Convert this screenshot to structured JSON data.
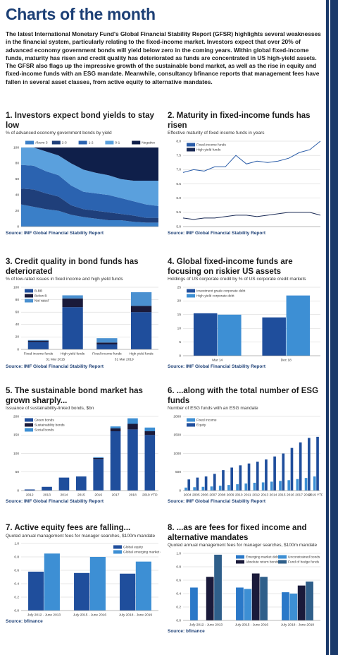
{
  "title": "Charts of the month",
  "intro": "The latest International Monetary Fund's Global Financial Stability Report (GFSR) highlights several weaknesses in the financial system, particularly relating to the fixed-income market. Investors expect that over 20% of advanced economy government bonds will yield below zero in the coming years. Within global fixed-income funds, maturity has risen and credit quality has deteriorated as funds are concentrated in US high-yield assets. The GFSR also flags up the impressive growth of the sustainable bond market, as well as the rise in equity and fixed-income funds with an ESG mandate. Meanwhile, consultancy bfinance reports that management fees have fallen in several asset classes, from active equity to alternative mandates.",
  "chart_data": [
    {
      "type": "area",
      "stacked": true,
      "title": "1. Investors expect bond yields to stay low",
      "subtitle": "% of advanced economy government bonds by yield",
      "source": "Source: IMF Global Financial Stability Report",
      "categories": [
        null,
        null,
        null,
        null,
        null,
        null,
        null,
        null,
        null,
        null,
        null,
        null
      ],
      "series": [
        {
          "name": "Above 3",
          "color": "#3a7fc8",
          "values": [
            28,
            25,
            22,
            20,
            15,
            12,
            10,
            8,
            8,
            6,
            5,
            5
          ]
        },
        {
          "name": "2-3",
          "color": "#1f3f7a",
          "values": [
            20,
            22,
            20,
            18,
            12,
            10,
            10,
            10,
            8,
            8,
            6,
            6
          ]
        },
        {
          "name": "1-2",
          "color": "#2b63b0",
          "values": [
            30,
            30,
            28,
            27,
            25,
            22,
            22,
            22,
            20,
            18,
            17,
            15
          ]
        },
        {
          "name": "0-1",
          "color": "#5aa0dd",
          "values": [
            22,
            23,
            25,
            25,
            28,
            28,
            26,
            25,
            24,
            26,
            30,
            32
          ]
        },
        {
          "name": "Negative",
          "color": "#0f1f4a",
          "values": [
            0,
            0,
            5,
            10,
            20,
            28,
            32,
            35,
            40,
            42,
            42,
            42
          ]
        }
      ],
      "ylim": [
        0,
        100
      ],
      "yticks": [
        0,
        20,
        40,
        60,
        80,
        100
      ],
      "grid": true,
      "legend": "top"
    },
    {
      "type": "line",
      "title": "2. Maturity in fixed-income funds has risen",
      "subtitle": "Effective maturity of fixed income funds in years",
      "source": "Source: IMF Global Financial Stability Report",
      "categories": [
        null,
        null,
        null,
        null,
        null,
        null,
        null,
        null,
        null,
        null,
        null,
        null,
        null,
        null
      ],
      "series": [
        {
          "name": "Fixed-income funds",
          "color": "#2a5ca8",
          "values": [
            6.9,
            7.0,
            6.95,
            7.1,
            7.1,
            7.5,
            7.2,
            7.3,
            7.25,
            7.3,
            7.4,
            7.6,
            7.7,
            8.0
          ]
        },
        {
          "name": "High-yield funds",
          "color": "#1a2a55",
          "values": [
            5.3,
            5.25,
            5.3,
            5.3,
            5.35,
            5.4,
            5.4,
            5.35,
            5.4,
            5.45,
            5.5,
            5.5,
            5.5,
            5.4
          ]
        }
      ],
      "ylim": [
        5.0,
        8.0
      ],
      "yticks": [
        {
          "value": 5,
          "label": "5.0"
        },
        5.5,
        {
          "value": 6,
          "label": "6.0"
        },
        6.5,
        {
          "value": 7,
          "label": "7.0"
        },
        7.5,
        {
          "value": 8,
          "label": "8.0"
        }
      ],
      "grid": true,
      "legend": "upper left"
    },
    {
      "type": "bar",
      "stacked": true,
      "title": "3. Credit quality in bond funds has deteriorated",
      "subtitle": "% of low-rated issues in fixed income and high yield funds",
      "source": "Source: IMF Global Financial Stability Report",
      "categories": [
        "Fixed income funds",
        "High yield funds",
        "Fixed income funds",
        "High yield funds"
      ],
      "group_labels": [
        "31 Mar 2015",
        "31 Mar 2019"
      ],
      "series": [
        {
          "name": "B-BB",
          "color": "#1f4e9c",
          "values": [
            12,
            68,
            8,
            60
          ]
        },
        {
          "name": "Below B",
          "color": "#1a1a3a",
          "values": [
            2,
            14,
            3,
            10
          ]
        },
        {
          "name": "Not rated",
          "color": "#4a90d0",
          "values": [
            1,
            5,
            7,
            22
          ]
        }
      ],
      "ylim": [
        0,
        100
      ],
      "yticks": [
        0,
        20,
        40,
        60,
        80,
        100
      ],
      "grid": true,
      "legend": "upper left"
    },
    {
      "type": "bar",
      "stacked": false,
      "title": "4. Global fixed-income funds are focusing on riskier US assets",
      "subtitle": "Holdings of US corporate credit by % of US corporate credit markets",
      "source": "Source: IMF Global Financial Stability Report",
      "categories": [
        "Mar 14",
        "Dec 18"
      ],
      "series": [
        {
          "name": "Investment grade corporate debt",
          "color": "#1f4e9c",
          "values": [
            15.5,
            14
          ]
        },
        {
          "name": "High-yield corporate debt",
          "color": "#3d8fd4",
          "values": [
            15,
            22
          ]
        }
      ],
      "ylim": [
        0,
        25
      ],
      "yticks": [
        0,
        5,
        10,
        15,
        20,
        25
      ],
      "grid": true,
      "legend": "upper left"
    },
    {
      "type": "bar",
      "stacked": true,
      "title": "5. The sustainable bond market has grown sharply...",
      "subtitle": "Issuance of sustainability-linked bonds, $bn",
      "source": "Source: IMF Global Financial Stability Report",
      "categories": [
        "2012",
        "2013",
        "2014",
        "2015",
        "2016",
        "2017",
        "2018",
        "2019 YTD"
      ],
      "series": [
        {
          "name": "Green bonds",
          "color": "#1f4e9c",
          "values": [
            3,
            10,
            35,
            38,
            85,
            160,
            165,
            150
          ]
        },
        {
          "name": "Sustainability bonds",
          "color": "#1a1a3a",
          "values": [
            0,
            0,
            0,
            0,
            3,
            8,
            15,
            10
          ]
        },
        {
          "name": "Social bonds",
          "color": "#3d8fd4",
          "values": [
            0,
            0,
            0,
            0,
            2,
            5,
            15,
            10
          ]
        }
      ],
      "ylim": [
        0,
        200
      ],
      "yticks": [
        0,
        50,
        100,
        150,
        200
      ],
      "grid": true,
      "legend": "upper left"
    },
    {
      "type": "bar",
      "stacked": false,
      "title": "6. ...along with the total number of ESG funds",
      "subtitle": "Number of ESG funds with an ESG mandate",
      "source": "Source: IMF Global Financial Stability Report",
      "categories": [
        "2004",
        "2005",
        "2006",
        "2007",
        "2008",
        "2009",
        "2010",
        "2011",
        "2012",
        "2013",
        "2014",
        "2015",
        "2016",
        "2017",
        "2018",
        "2019 YTD"
      ],
      "series": [
        {
          "name": "Fixed income",
          "color": "#3d8fd4",
          "values": [
            80,
            90,
            100,
            110,
            130,
            150,
            170,
            190,
            210,
            220,
            240,
            260,
            280,
            310,
            340,
            380
          ]
        },
        {
          "name": "Equity",
          "color": "#1f4e9c",
          "values": [
            300,
            350,
            380,
            450,
            550,
            620,
            680,
            730,
            780,
            840,
            920,
            1000,
            1150,
            1300,
            1420,
            1450
          ]
        }
      ],
      "ylim": [
        0,
        2000
      ],
      "yticks": [
        0,
        500,
        1000,
        1500,
        2000
      ],
      "grid": true,
      "legend": "upper left"
    },
    {
      "type": "bar",
      "stacked": false,
      "title": "7. Active equity fees are falling...",
      "subtitle": "Quoted annual management fees for manager searches, $100m mandate",
      "source": "Source: bfinance",
      "categories": [
        "July 2012 - June 2013",
        "July 2015 - June 2016",
        "July 2018 - June 2019"
      ],
      "series": [
        {
          "name": "Global equity",
          "color": "#1f4e9c",
          "values": [
            0.58,
            0.56,
            0.55
          ]
        },
        {
          "name": "Global emerging market equity",
          "color": "#3d8fd4",
          "values": [
            0.85,
            0.8,
            0.73
          ]
        }
      ],
      "ylim": [
        0,
        1.0
      ],
      "yticks": [
        {
          "value": 0,
          "label": "0.0"
        },
        0.2,
        0.4,
        0.6,
        0.8,
        {
          "value": 1,
          "label": "1.0"
        }
      ],
      "grid": true,
      "legend": "upper right"
    },
    {
      "type": "bar",
      "stacked": false,
      "title": "8. ...as are fees for fixed income and alternative mandates",
      "subtitle": "Quoted annual management fees for manager searches, $100m mandate",
      "source": "Source: bfinance",
      "categories": [
        "July 2012 - June 2013",
        "July 2015 - June 2016",
        "July 2018 - June 2019"
      ],
      "series": [
        {
          "name": "Emerging market debt",
          "color": "#2a78c8",
          "values": [
            0.49,
            0.49,
            0.42
          ]
        },
        {
          "name": "Unconstrained bonds",
          "color": "#3d8fd4",
          "values": [
            null,
            0.47,
            0.4
          ]
        },
        {
          "name": "Absolute return bonds",
          "color": "#1a1a3a",
          "values": [
            0.65,
            0.7,
            0.52
          ]
        },
        {
          "name": "Fund of hedge funds",
          "color": "#2f5f8a",
          "values": [
            0.98,
            0.65,
            0.58
          ]
        }
      ],
      "ylim": [
        0,
        1.0
      ],
      "yticks": [
        {
          "value": 0,
          "label": "0.0"
        },
        0.2,
        0.4,
        0.6,
        0.8,
        {
          "value": 1,
          "label": "1.0"
        }
      ],
      "grid": true,
      "legend": "upper right"
    }
  ]
}
